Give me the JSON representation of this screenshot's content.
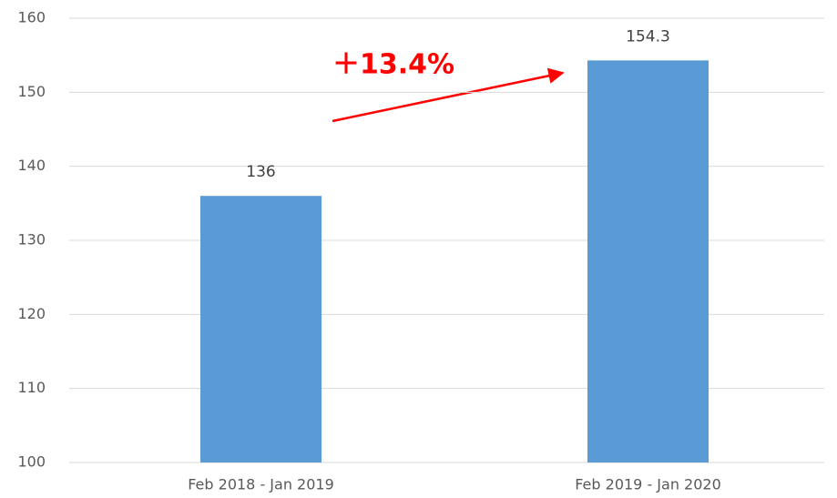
{
  "chart_data": {
    "type": "bar",
    "categories": [
      "Feb 2018 - Jan 2019",
      "Feb 2019 - Jan 2020"
    ],
    "values": [
      136,
      154.3
    ],
    "color": "#5b9bd5",
    "ylim": [
      100,
      160
    ],
    "yticks": [
      100,
      110,
      120,
      130,
      140,
      150,
      160
    ],
    "grid": true,
    "annotation": "＋13.4%",
    "annotation_color": "#ff0000"
  }
}
